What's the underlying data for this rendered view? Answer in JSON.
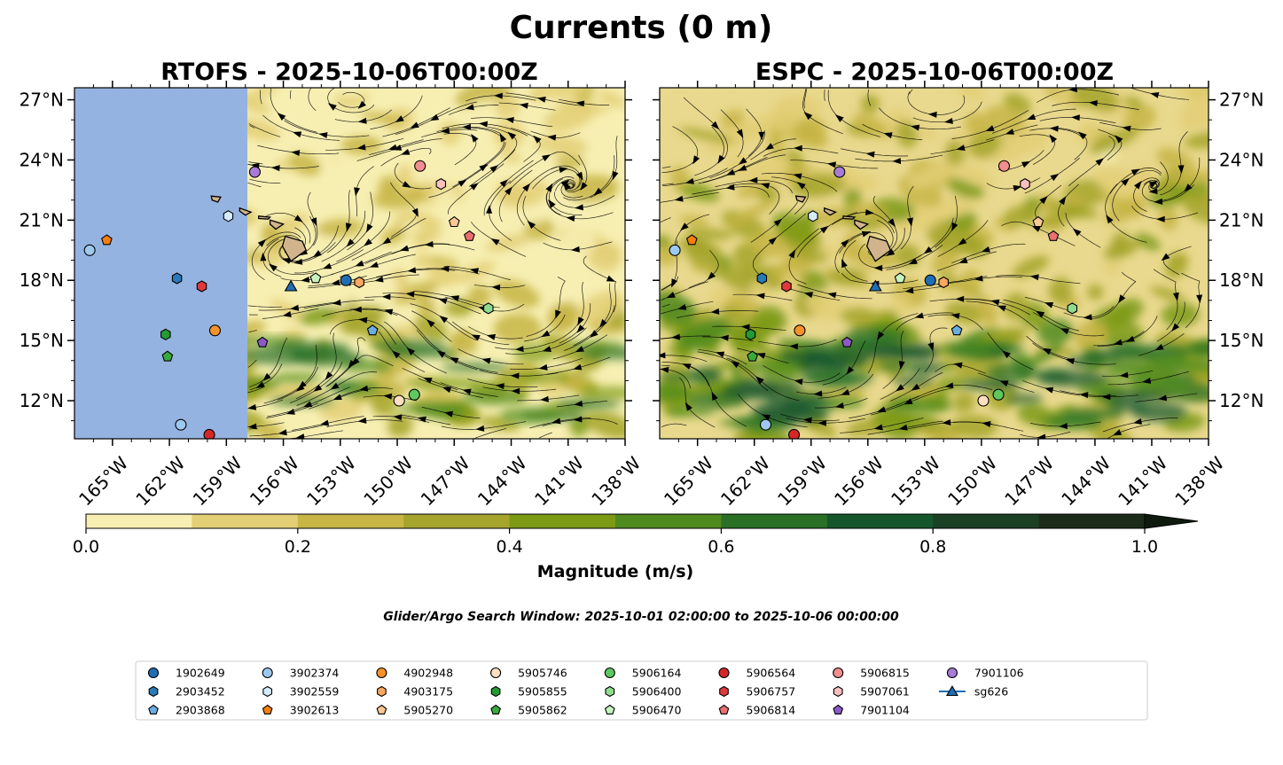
{
  "figure": {
    "title": "Currents (0 m)",
    "note": "Glider/Argo Search Window: 2025-10-01 02:00:00 to 2025-10-06 00:00:00"
  },
  "chart_data": [
    {
      "type": "map",
      "title": "RTOFS - 2025-10-06T00:00Z",
      "xlabel": "",
      "ylabel": "",
      "xlim_lon": [
        -167,
        -138
      ],
      "ylim_lat": [
        10.1,
        27.6
      ],
      "no_model_data_west_of_lon": -157.9,
      "lon_tick_labels": [
        "165°W",
        "162°W",
        "159°W",
        "156°W",
        "153°W",
        "150°W",
        "147°W",
        "144°W",
        "141°W",
        "138°W"
      ],
      "lat_tick_labels": [
        "12°N",
        "15°N",
        "18°N",
        "21°N",
        "24°N",
        "27°N"
      ],
      "lat_labels_side": "left",
      "background_field": "Current magnitude (m/s)",
      "markers": [
        {
          "id": "1902649",
          "lon": -152.7,
          "lat": 18.0
        },
        {
          "id": "2903452",
          "lon": -161.6,
          "lat": 18.1
        },
        {
          "id": "2903868",
          "lon": -151.3,
          "lat": 15.5
        },
        {
          "id": "3902374",
          "lon": -166.2,
          "lat": 19.5
        },
        {
          "id": "3902559",
          "lon": -158.9,
          "lat": 21.2
        },
        {
          "id": "3902613",
          "lon": -165.3,
          "lat": 20.0
        },
        {
          "id": "4902948",
          "lon": -159.6,
          "lat": 15.5
        },
        {
          "id": "4903175",
          "lon": -152.0,
          "lat": 17.9
        },
        {
          "id": "5905270",
          "lon": -147.0,
          "lat": 20.9
        },
        {
          "id": "5905746",
          "lon": -149.9,
          "lat": 12.0
        },
        {
          "id": "5905855",
          "lon": -162.2,
          "lat": 15.3
        },
        {
          "id": "5905862",
          "lon": -162.1,
          "lat": 14.2
        },
        {
          "id": "5906164",
          "lon": -149.1,
          "lat": 12.3
        },
        {
          "id": "5906400",
          "lon": -145.2,
          "lat": 16.6
        },
        {
          "id": "5906470",
          "lon": -154.3,
          "lat": 18.1
        },
        {
          "id": "5906564",
          "lon": -159.9,
          "lat": 10.3
        },
        {
          "id": "5906757",
          "lon": -160.3,
          "lat": 17.7
        },
        {
          "id": "5906814",
          "lon": -146.2,
          "lat": 20.2
        },
        {
          "id": "5906815",
          "lon": -148.8,
          "lat": 23.7
        },
        {
          "id": "5907061",
          "lon": -147.7,
          "lat": 22.8
        },
        {
          "id": "7901104",
          "lon": -157.1,
          "lat": 14.9
        },
        {
          "id": "7901106",
          "lon": -157.5,
          "lat": 23.4
        },
        {
          "id": "sg626",
          "lon": -155.6,
          "lat": 17.7
        },
        {
          "id": "3902374b",
          "lon": -161.4,
          "lat": 10.8,
          "as": "3902374"
        }
      ]
    },
    {
      "type": "map",
      "title": "ESPC - 2025-10-06T00:00Z",
      "xlabel": "",
      "ylabel": "",
      "xlim_lon": [
        -167,
        -138
      ],
      "ylim_lat": [
        10.1,
        27.6
      ],
      "lon_tick_labels": [
        "165°W",
        "162°W",
        "159°W",
        "156°W",
        "153°W",
        "150°W",
        "147°W",
        "144°W",
        "141°W",
        "138°W"
      ],
      "lat_tick_labels": [
        "12°N",
        "15°N",
        "18°N",
        "21°N",
        "24°N",
        "27°N"
      ],
      "lat_labels_side": "right",
      "background_field": "Current magnitude (m/s)",
      "markers": "same as RTOFS panel"
    }
  ],
  "colorbar": {
    "label": "Magnitude (m/s)",
    "range": [
      0.0,
      1.0
    ],
    "extend": "max",
    "bins": [
      0.0,
      0.1,
      0.2,
      0.3,
      0.4,
      0.5,
      0.6,
      0.7,
      0.8,
      0.9,
      1.0
    ],
    "colors": [
      "#f7efb2",
      "#e3cf76",
      "#c7b545",
      "#a5a42c",
      "#7c9a14",
      "#4f8a1f",
      "#2a7026",
      "#16562c",
      "#1b4024",
      "#1d2b1b",
      "#0f1a0f"
    ],
    "tick_labels": [
      "0.0",
      "0.2",
      "0.4",
      "0.6",
      "0.8",
      "1.0"
    ]
  },
  "colors": {
    "land": "#d2b48c",
    "no_data": "#95b3e0",
    "streamline": "#000000"
  },
  "legend": {
    "items": [
      {
        "label": "1902649",
        "marker": "circle",
        "color": "#1f6eb4"
      },
      {
        "label": "2903452",
        "marker": "hexagon",
        "color": "#2a7ab8"
      },
      {
        "label": "2903868",
        "marker": "pentagon",
        "color": "#6aaee0"
      },
      {
        "label": "3902374",
        "marker": "circle",
        "color": "#9ec9ef"
      },
      {
        "label": "3902559",
        "marker": "hexagon",
        "color": "#d4ecfb"
      },
      {
        "label": "3902613",
        "marker": "pentagon",
        "color": "#f57f0e"
      },
      {
        "label": "4902948",
        "marker": "circle",
        "color": "#f5922b"
      },
      {
        "label": "4903175",
        "marker": "hexagon",
        "color": "#f8a760"
      },
      {
        "label": "5905270",
        "marker": "pentagon",
        "color": "#fbc795"
      },
      {
        "label": "5905746",
        "marker": "circle",
        "color": "#fde0c2"
      },
      {
        "label": "5905855",
        "marker": "hexagon",
        "color": "#239a32"
      },
      {
        "label": "5905862",
        "marker": "pentagon",
        "color": "#3aaa3a"
      },
      {
        "label": "5906164",
        "marker": "circle",
        "color": "#5ec85e"
      },
      {
        "label": "5906400",
        "marker": "hexagon",
        "color": "#8fdc8f"
      },
      {
        "label": "5906470",
        "marker": "pentagon",
        "color": "#c6f3c0"
      },
      {
        "label": "5906564",
        "marker": "circle",
        "color": "#d62728"
      },
      {
        "label": "5906757",
        "marker": "hexagon",
        "color": "#e0393b"
      },
      {
        "label": "5906814",
        "marker": "pentagon",
        "color": "#ea6f72"
      },
      {
        "label": "5906815",
        "marker": "circle",
        "color": "#f28e8f"
      },
      {
        "label": "5907061",
        "marker": "hexagon",
        "color": "#f9c0c0"
      },
      {
        "label": "7901104",
        "marker": "pentagon",
        "color": "#8c5ac8"
      },
      {
        "label": "7901106",
        "marker": "circle",
        "color": "#a97bd6"
      },
      {
        "label": "sg626",
        "marker": "triangle-line",
        "color": "#1f6eb4"
      }
    ]
  }
}
